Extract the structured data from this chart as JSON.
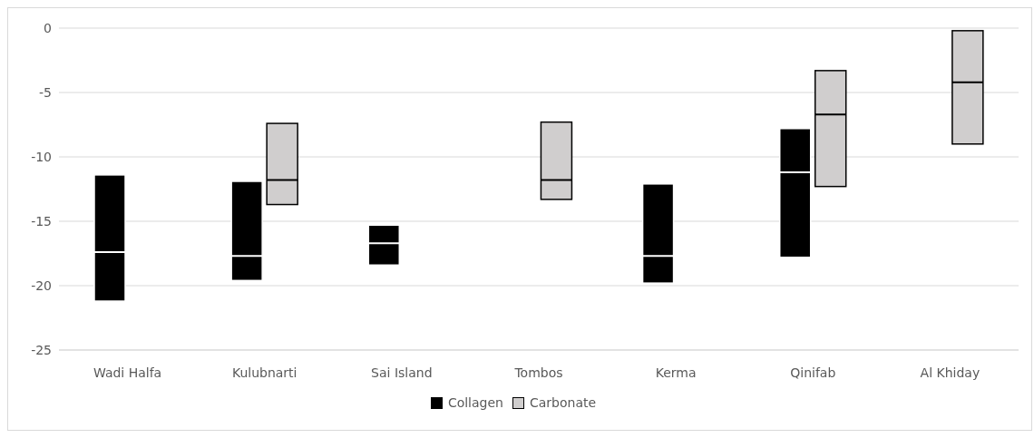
{
  "chart_data": {
    "type": "box",
    "categories": [
      "Wadi Halfa",
      "Kulubnarti",
      "Sai Island",
      "Tombos",
      "Kerma",
      "Qinifab",
      "Al Khiday"
    ],
    "series": [
      {
        "name": "Collagen",
        "color": "#000000",
        "boxes": [
          {
            "low": -21.2,
            "q1": -21.2,
            "median": -17.4,
            "q3": -11.4,
            "high": -11.4
          },
          {
            "low": -19.6,
            "q1": -19.6,
            "median": -17.7,
            "q3": -11.9,
            "high": -11.9
          },
          {
            "low": -18.4,
            "q1": -18.4,
            "median": -16.7,
            "q3": -15.3,
            "high": -15.3
          },
          null,
          {
            "low": -19.8,
            "q1": -19.8,
            "median": -17.7,
            "q3": -12.1,
            "high": -12.1
          },
          {
            "low": -17.8,
            "q1": -17.8,
            "median": -11.2,
            "q3": -7.8,
            "high": -7.8
          },
          null
        ]
      },
      {
        "name": "Carbonate",
        "color": "#d0cece",
        "boxes": [
          null,
          {
            "low": -13.7,
            "q1": -13.7,
            "median": -11.8,
            "q3": -7.4,
            "high": -7.4
          },
          null,
          {
            "low": -13.3,
            "q1": -13.3,
            "median": -11.8,
            "q3": -7.3,
            "high": -7.3
          },
          null,
          {
            "low": -12.3,
            "q1": -12.3,
            "median": -6.7,
            "q3": -3.3,
            "high": -3.3
          },
          {
            "low": -9.0,
            "q1": -9.0,
            "median": -4.2,
            "q3": -0.2,
            "high": -0.2
          }
        ]
      }
    ],
    "ylim": [
      -25,
      0
    ],
    "yticks": [
      -25,
      -20,
      -15,
      -10,
      -5,
      0
    ],
    "grid": "y",
    "legend": "bottom"
  }
}
